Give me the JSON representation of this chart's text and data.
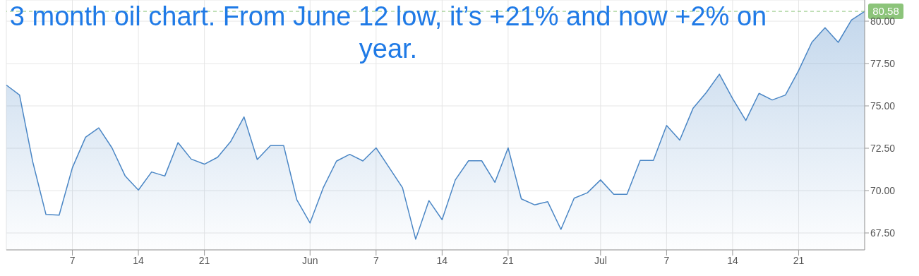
{
  "chart_data": {
    "type": "area",
    "title": "3 month oil chart. From June 12 low, it’s +21% and now +2% on year.",
    "categories": [
      null,
      null,
      null,
      null,
      null,
      "7",
      null,
      null,
      null,
      null,
      "14",
      null,
      null,
      null,
      null,
      "21",
      null,
      null,
      null,
      null,
      null,
      null,
      null,
      "Jun",
      null,
      null,
      null,
      null,
      "7",
      null,
      null,
      null,
      null,
      "14",
      null,
      null,
      null,
      null,
      "21",
      null,
      null,
      null,
      null,
      null,
      null,
      "Jul",
      null,
      null,
      null,
      null,
      "7",
      null,
      null,
      null,
      null,
      "14",
      null,
      null,
      null,
      null,
      "21",
      null,
      null,
      null,
      null,
      null
    ],
    "series": [
      {
        "color": "#4a86c5",
        "values": [
          76.23,
          75.64,
          71.69,
          68.59,
          68.55,
          71.35,
          73.15,
          73.7,
          72.52,
          70.86,
          70.03,
          71.1,
          70.86,
          72.83,
          71.86,
          71.56,
          71.97,
          72.91,
          74.35,
          71.83,
          72.66,
          72.66,
          69.45,
          68.09,
          70.17,
          71.74,
          72.14,
          71.75,
          72.52,
          71.35,
          70.17,
          67.13,
          69.41,
          68.28,
          70.63,
          71.76,
          71.76,
          70.49,
          72.52,
          69.51,
          69.16,
          69.34,
          67.71,
          69.55,
          69.87,
          70.63,
          69.78,
          69.78,
          71.78,
          71.78,
          73.84,
          72.98,
          74.85,
          75.78,
          76.87,
          75.43,
          74.14,
          75.74,
          75.35,
          75.64,
          77.09,
          78.75,
          79.61,
          78.75,
          80.07,
          80.58
        ]
      }
    ],
    "ylim": [
      66.5,
      81.25
    ],
    "yticks": [
      {
        "value": 67.5,
        "label": "67.50"
      },
      {
        "value": 70,
        "label": "70.00"
      },
      {
        "value": 72.5,
        "label": "72.50"
      },
      {
        "value": 75,
        "label": "75.00"
      },
      {
        "value": 77.5,
        "label": "77.50"
      },
      {
        "value": 80,
        "label": "80.00"
      }
    ],
    "ref_lines": [
      {
        "axis": "y",
        "value": 80.58,
        "label": "80.58",
        "color": "#8cc47a",
        "line_style": "dashed"
      }
    ],
    "grid": true,
    "marker": "none",
    "line_style": "solid"
  }
}
